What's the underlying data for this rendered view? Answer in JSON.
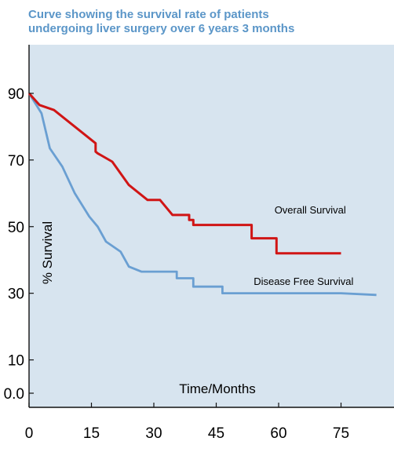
{
  "title_lines": [
    "Curve showing the survival rate of patients",
    "undergoing liver surgery over 6 years 3 months"
  ],
  "colors": {
    "background_plot": "#d7e4ef",
    "title": "#5b96c8",
    "overall": "#d01515",
    "disease_free": "#6a9fd2"
  },
  "chart_data": {
    "type": "line",
    "title": "Curve showing the survival rate of patients undergoing liver surgery over 6 years 3 months",
    "xlabel": "Time/Months",
    "ylabel": "% Survival",
    "xlim": [
      0,
      88
    ],
    "ylim": [
      0,
      97
    ],
    "x_ticks": [
      0,
      15,
      30,
      45,
      60,
      75
    ],
    "x_tick_labels": [
      "0",
      "15",
      "30",
      "45",
      "60",
      "75"
    ],
    "y_ticks": [
      0,
      10,
      30,
      50,
      70,
      90
    ],
    "y_tick_labels": [
      "0.0",
      "10",
      "30",
      "50",
      "70",
      "90"
    ],
    "grid": false,
    "series": [
      {
        "name": "Overall Survival",
        "color": "#d01515",
        "label_at": [
          59,
          54
        ],
        "x": [
          0,
          2.5,
          6,
          16,
          16,
          16.5,
          20,
          24,
          28.5,
          31.5,
          34.5,
          38.5,
          38.5,
          39.5,
          39.5,
          53.5,
          53.5,
          59.5,
          59.5,
          75
        ],
        "y": [
          90,
          86.5,
          85,
          75,
          72.5,
          72,
          69.5,
          62.5,
          58,
          58,
          53.5,
          53.5,
          52,
          52,
          50.5,
          50.5,
          46.5,
          46.5,
          42,
          42
        ]
      },
      {
        "name": "Disease Free Survival",
        "color": "#6a9fd2",
        "label_at": [
          54,
          32.5
        ],
        "x": [
          0,
          3,
          5,
          8,
          11,
          14.5,
          16.5,
          18.5,
          22,
          24,
          27,
          30,
          35.5,
          35.5,
          39.5,
          39.5,
          46.5,
          46.5,
          60,
          75,
          83.5
        ],
        "y": [
          90,
          84,
          73.5,
          68,
          60,
          53,
          50,
          45.5,
          42.5,
          38,
          36.5,
          36.5,
          36.5,
          34.5,
          34.5,
          32,
          32,
          30,
          30,
          30,
          29.5
        ]
      }
    ]
  }
}
